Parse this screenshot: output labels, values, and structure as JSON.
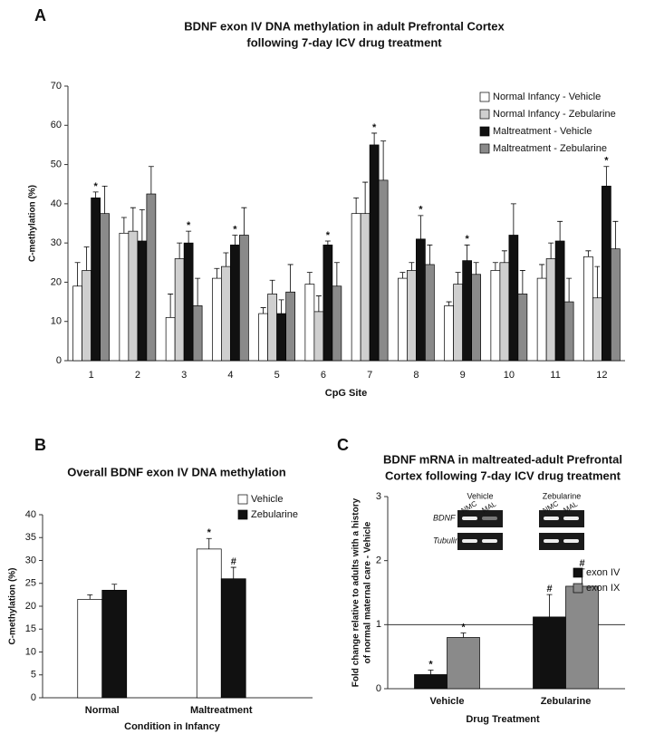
{
  "chart_data": [
    {
      "type": "bar",
      "panel": "A",
      "title": [
        "BDNF exon IV DNA methylation in adult Prefrontal Cortex",
        "following 7-day ICV drug treatment"
      ],
      "xlabel": "CpG Site",
      "ylabel": "C-methylation (%)",
      "categories": [
        "1",
        "2",
        "3",
        "4",
        "5",
        "6",
        "7",
        "8",
        "9",
        "10",
        "11",
        "12"
      ],
      "ylim": [
        0,
        70
      ],
      "yticks": [
        0,
        10,
        20,
        30,
        40,
        50,
        60,
        70
      ],
      "legend": "upper right",
      "series": [
        {
          "name": "Normal Infancy - Vehicle",
          "color": "#ffffff",
          "values": [
            19,
            32.5,
            11,
            21,
            12,
            19.5,
            37.5,
            21,
            14,
            23,
            21,
            26.5
          ],
          "errors": [
            6,
            4,
            6,
            2.5,
            1.5,
            3,
            4,
            1.5,
            1,
            2,
            3.5,
            1.5
          ]
        },
        {
          "name": "Normal Infancy - Zebularine",
          "color": "#cfcfcf",
          "values": [
            23,
            33,
            26,
            24,
            17,
            12.5,
            37.5,
            23,
            19.5,
            25,
            26,
            16
          ],
          "errors": [
            6,
            6,
            4,
            3.5,
            3.5,
            4,
            8,
            2,
            3,
            3,
            4,
            8
          ]
        },
        {
          "name": "Maltreatment - Vehicle",
          "color": "#111111",
          "values": [
            41.5,
            30.5,
            30,
            29.5,
            12,
            29.5,
            55,
            31,
            25.5,
            32,
            30.5,
            44.5
          ],
          "errors": [
            1.5,
            8,
            3,
            2.5,
            3.5,
            1,
            3,
            6,
            4,
            8,
            5,
            5
          ],
          "markers": [
            "*",
            null,
            "*",
            "*",
            null,
            "*",
            "*",
            "*",
            "*",
            null,
            null,
            "*"
          ]
        },
        {
          "name": "Maltreatment - Zebularine",
          "color": "#8a8a8a",
          "values": [
            37.5,
            42.5,
            14,
            32,
            17.5,
            19,
            46,
            24.5,
            22,
            17,
            15,
            28.5
          ],
          "errors": [
            7,
            7,
            7,
            7,
            7,
            6,
            10,
            5,
            3,
            6,
            6,
            7
          ]
        }
      ]
    },
    {
      "type": "bar",
      "panel": "B",
      "title": [
        "Overall BDNF exon IV DNA methylation"
      ],
      "xlabel": "Condition in Infancy",
      "ylabel": "C-methylation (%)",
      "categories": [
        "Normal",
        "Maltreatment"
      ],
      "ylim": [
        0,
        40
      ],
      "yticks": [
        0,
        5,
        10,
        15,
        20,
        25,
        30,
        35,
        40
      ],
      "legend": "upper right",
      "series": [
        {
          "name": "Vehicle",
          "color": "#ffffff",
          "values": [
            21.5,
            32.5
          ],
          "errors": [
            1,
            2.3
          ],
          "markers": [
            null,
            "*"
          ]
        },
        {
          "name": "Zebularine",
          "color": "#111111",
          "values": [
            23.5,
            26
          ],
          "errors": [
            1.3,
            2.5
          ],
          "markers": [
            null,
            "#"
          ]
        }
      ]
    },
    {
      "type": "bar",
      "panel": "C",
      "title": [
        "BDNF mRNA in maltreated-adult Prefrontal",
        "Cortex following 7-day ICV drug treatment"
      ],
      "xlabel": "Drug Treatment",
      "ylabel": [
        "Fold change relative to adults with a history",
        "of normal maternal care - Vehicle"
      ],
      "categories": [
        "Vehicle",
        "Zebularine"
      ],
      "ylim": [
        0,
        3
      ],
      "yticks": [
        0,
        1,
        2,
        3
      ],
      "hline": 1,
      "legend": "right",
      "series": [
        {
          "name": "exon IV",
          "color": "#111111",
          "values": [
            0.22,
            1.12
          ],
          "errors": [
            0.07,
            0.35
          ],
          "markers": [
            "*",
            "#"
          ]
        },
        {
          "name": "exon IX",
          "color": "#8a8a8a",
          "values": [
            0.8,
            1.6
          ],
          "errors": [
            0.07,
            0.27
          ],
          "markers": [
            "*",
            "#"
          ]
        }
      ],
      "inset": {
        "groups": [
          "Vehicle",
          "Zebularine"
        ],
        "lanes": [
          "NMC",
          "MAL",
          "NMC",
          "MAL"
        ],
        "rows": [
          "BDNF",
          "Tubulin"
        ]
      }
    }
  ]
}
